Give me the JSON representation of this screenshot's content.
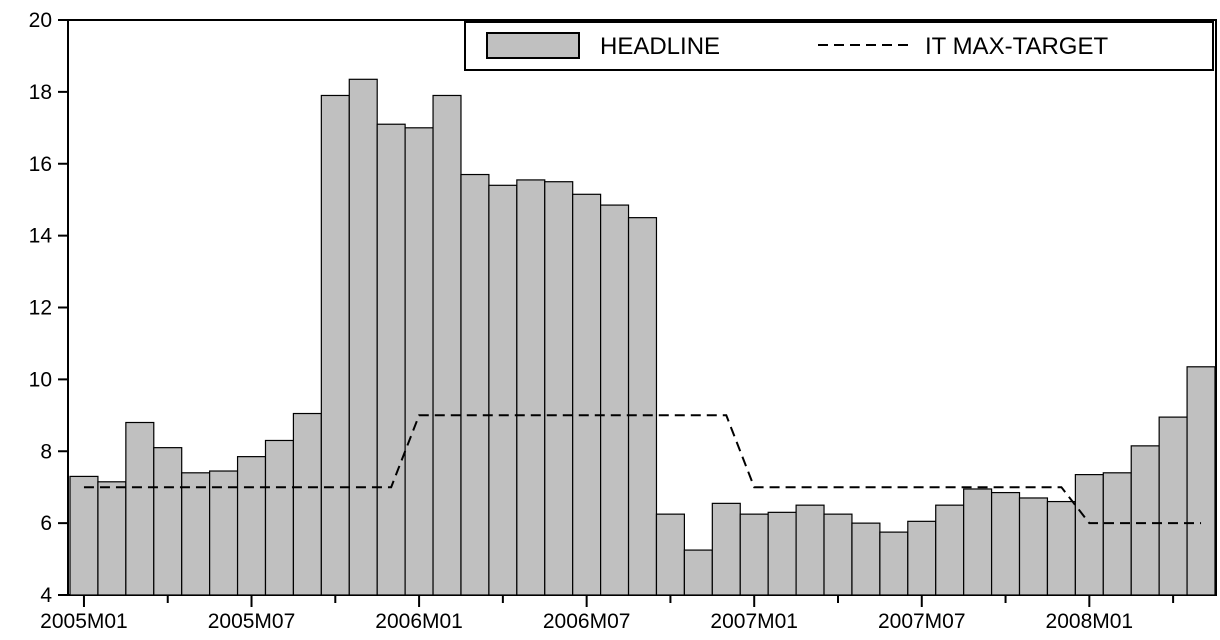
{
  "chart_data": {
    "type": "bar",
    "x": [
      "2005M01",
      "2005M02",
      "2005M03",
      "2005M04",
      "2005M05",
      "2005M06",
      "2005M07",
      "2005M08",
      "2005M09",
      "2005M10",
      "2005M11",
      "2005M12",
      "2006M01",
      "2006M02",
      "2006M03",
      "2006M04",
      "2006M05",
      "2006M06",
      "2006M07",
      "2006M08",
      "2006M09",
      "2006M10",
      "2006M11",
      "2006M12",
      "2007M01",
      "2007M02",
      "2007M03",
      "2007M04",
      "2007M05",
      "2007M06",
      "2007M07",
      "2007M08",
      "2007M09",
      "2007M10",
      "2007M11",
      "2007M12",
      "2008M01",
      "2008M02",
      "2008M03",
      "2008M04",
      "2008M05"
    ],
    "series": [
      {
        "name": "HEADLINE",
        "kind": "bar",
        "color": "#c0c0c0",
        "values": [
          7.3,
          7.15,
          8.8,
          8.1,
          7.4,
          7.45,
          7.85,
          8.3,
          9.05,
          17.9,
          18.35,
          17.1,
          17.0,
          17.9,
          15.7,
          15.4,
          15.55,
          15.5,
          15.15,
          14.85,
          14.5,
          6.25,
          5.25,
          6.55,
          6.25,
          6.3,
          6.5,
          6.25,
          6.0,
          5.75,
          6.05,
          6.5,
          6.95,
          6.85,
          6.7,
          6.6,
          7.35,
          7.4,
          8.15,
          8.95,
          10.35
        ]
      },
      {
        "name": "IT MAX-TARGET",
        "kind": "line",
        "style": "dashed",
        "color": "#000000",
        "values": [
          7,
          7,
          7,
          7,
          7,
          7,
          7,
          7,
          7,
          7,
          7,
          7,
          9,
          9,
          9,
          9,
          9,
          9,
          9,
          9,
          9,
          9,
          9,
          9,
          7,
          7,
          7,
          7,
          7,
          7,
          7,
          7,
          7,
          7,
          7,
          7,
          6,
          6,
          6,
          6,
          6
        ]
      }
    ],
    "ylim": [
      4,
      20
    ],
    "yticks": [
      4,
      6,
      8,
      10,
      12,
      14,
      16,
      18,
      20
    ],
    "xtick_labels": [
      "2005M01",
      "2005M07",
      "2006M01",
      "2006M07",
      "2007M01",
      "2007M07",
      "2008M01"
    ],
    "legend_position": "top-right",
    "grid": false
  }
}
